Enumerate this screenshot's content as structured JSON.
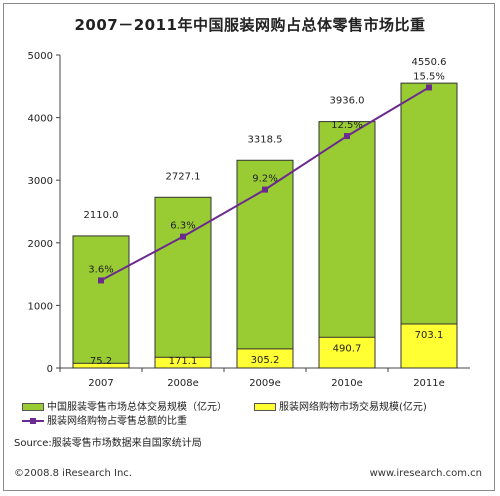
{
  "chart_data": {
    "type": "bar",
    "title": "2007－2011年中国服装网购占总体零售市场比重",
    "categories": [
      "2007",
      "2008e",
      "2009e",
      "2010e",
      "2011e"
    ],
    "series": [
      {
        "name": "中国服装零售市场总体交易规模（亿元）",
        "type": "bar",
        "values": [
          2110.0,
          2727.1,
          3318.5,
          3936.0,
          4550.6
        ],
        "labels": [
          "2110.0",
          "2727.1",
          "3318.5",
          "3936.0",
          "4550.6"
        ],
        "color": "#99cc33"
      },
      {
        "name": "服装网络购物市场交易规模(亿元)",
        "type": "bar",
        "values": [
          75.2,
          171.1,
          305.2,
          490.7,
          703.1
        ],
        "labels": [
          "75.2",
          "171.1",
          "305.2",
          "490.7",
          "703.1"
        ],
        "color": "#ffff33"
      },
      {
        "name": "服装网络购物占零售总额的比重",
        "type": "line",
        "values": [
          3.6,
          6.3,
          9.2,
          12.5,
          15.5
        ],
        "labels": [
          "3.6%",
          "6.3%",
          "9.2%",
          "12.5%",
          "15.5%"
        ],
        "color": "#6b2a8e"
      }
    ],
    "y_ticks": [
      "0",
      "1000",
      "2000",
      "3000",
      "4000",
      "5000"
    ],
    "ylim": [
      0,
      5000
    ],
    "line_ylim": [
      -1.8,
      17.5
    ],
    "legend_position": "bottom",
    "grid": false
  },
  "source_text": "Source:服装零售市场数据来自国家统计局",
  "footer": {
    "copyright": "©2008.8 iResearch Inc.",
    "website": "www.iresearch.com.cn"
  }
}
